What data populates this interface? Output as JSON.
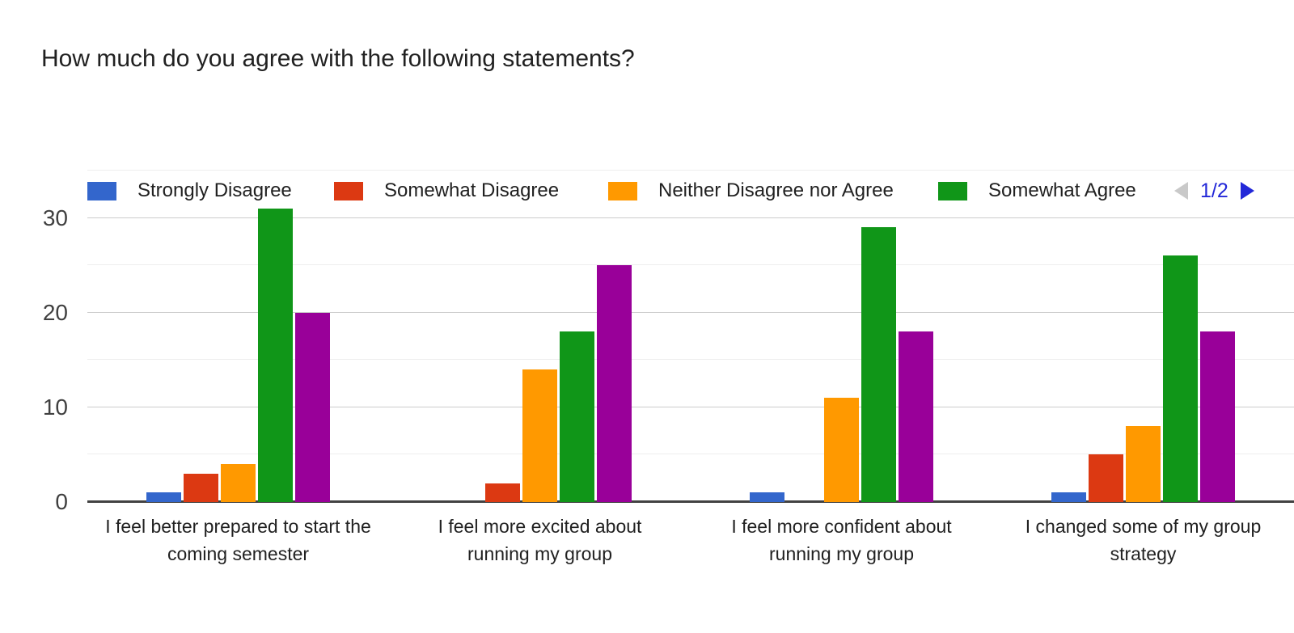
{
  "title": "How much do you agree with the following statements?",
  "legend": {
    "items": [
      {
        "label": "Strongly Disagree",
        "color": "#3366CC"
      },
      {
        "label": "Somewhat Disagree",
        "color": "#DC3912"
      },
      {
        "label": "Neither Disagree nor Agree",
        "color": "#FF9900"
      },
      {
        "label": "Somewhat Agree",
        "color": "#109618"
      }
    ],
    "pager": {
      "label": "1/2",
      "page": 1,
      "pages": 2
    }
  },
  "chart_data": {
    "type": "bar",
    "title": "How much do you agree with the following statements?",
    "categories": [
      "I feel better prepared to start the coming semester",
      "I feel more excited about running my group",
      "I feel more confident about running my group",
      "I changed some of my group strategy"
    ],
    "series": [
      {
        "name": "Strongly Disagree",
        "color": "#3366CC",
        "values": [
          1,
          0,
          1,
          1
        ]
      },
      {
        "name": "Somewhat Disagree",
        "color": "#DC3912",
        "values": [
          3,
          2,
          0,
          5
        ]
      },
      {
        "name": "Neither Disagree nor Agree",
        "color": "#FF9900",
        "values": [
          4,
          14,
          11,
          8
        ]
      },
      {
        "name": "Somewhat Agree",
        "color": "#109618",
        "values": [
          31,
          18,
          29,
          26
        ]
      },
      {
        "name": "",
        "color": "#990099",
        "values": [
          20,
          25,
          18,
          18
        ]
      }
    ],
    "xlabel": "",
    "ylabel": "",
    "y_ticks": [
      0,
      10,
      20,
      30
    ],
    "y_minor_step": 5,
    "ylim": [
      0,
      35
    ],
    "grid": true,
    "legend_position": "top"
  }
}
